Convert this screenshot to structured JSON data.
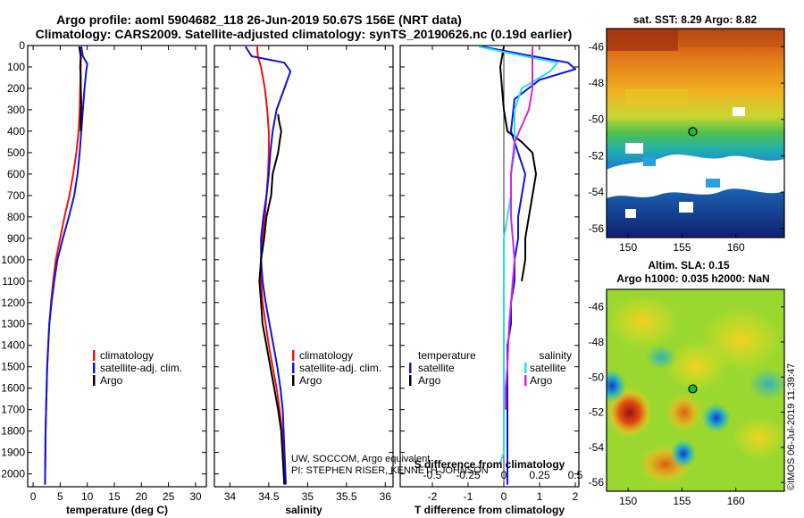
{
  "figure": {
    "title_line1": "Argo profile: aoml 5904682_118 26-Jun-2019 50.67S 156E (NRT data)",
    "title_line2": "Climatology: CARS2009. Satellite-adjusted climatology: synTS_20190626.nc (0.19d earlier)",
    "credit_line1": "UW, SOCCOM, Argo equivalent",
    "credit_line2": "PI: STEPHEN RISER, KENNETH JOHNSON",
    "timestamp": "©IMOS 06-Jul-2019 11:39:47"
  },
  "colors": {
    "climatology": "#ee1111",
    "satellite": "#1111dd",
    "argo": "#000000",
    "satellite_salinity": "#22e0ee",
    "argo_salinity": "#dd22dd"
  },
  "chart_data": [
    {
      "id": "temperature",
      "type": "line",
      "xlabel": "temperature (deg C)",
      "ylabel": "",
      "xlim": [
        -1,
        32
      ],
      "ylim": [
        2060,
        0
      ],
      "xticks": [
        "0",
        "5",
        "10",
        "15",
        "20",
        "25",
        "30"
      ],
      "xtick_values": [
        0,
        5,
        10,
        15,
        20,
        25,
        30
      ],
      "yticks": [
        "0",
        "100",
        "200",
        "300",
        "400",
        "500",
        "600",
        "700",
        "800",
        "900",
        "1000",
        "1100",
        "1200",
        "1300",
        "1400",
        "1500",
        "1600",
        "1700",
        "1800",
        "1900",
        "2000"
      ],
      "ytick_values": [
        0,
        100,
        200,
        300,
        400,
        500,
        600,
        700,
        800,
        900,
        1000,
        1100,
        1200,
        1300,
        1400,
        1500,
        1600,
        1700,
        1800,
        1900,
        2000
      ],
      "legend": [
        "climatology",
        "satellite-adj. clim.",
        "Argo"
      ],
      "series": [
        {
          "name": "climatology",
          "color_key": "climatology",
          "x": [
            8.8,
            8.8,
            8.8,
            8.7,
            8.6,
            8.4,
            8.0,
            7.4,
            6.7,
            5.8,
            5.0,
            4.2,
            3.7,
            3.3,
            3.0,
            2.8,
            2.6,
            2.5,
            2.4,
            2.3,
            2.2
          ],
          "y": [
            5,
            50,
            100,
            200,
            300,
            400,
            500,
            600,
            700,
            800,
            900,
            1000,
            1100,
            1200,
            1300,
            1400,
            1500,
            1600,
            1700,
            1800,
            2050
          ]
        },
        {
          "name": "satellite-adj. clim.",
          "color_key": "satellite",
          "x": [
            8.9,
            9.2,
            10.0,
            9.8,
            9.5,
            9.2,
            8.9,
            8.6,
            8.2,
            7.6,
            6.6,
            5.5,
            4.5,
            3.9,
            3.4,
            3.0,
            2.8,
            2.6,
            2.5,
            2.4,
            2.3,
            2.2
          ],
          "y": [
            5,
            50,
            85,
            120,
            200,
            300,
            400,
            500,
            600,
            700,
            800,
            900,
            1000,
            1100,
            1200,
            1300,
            1400,
            1500,
            1600,
            1700,
            1800,
            2050
          ]
        },
        {
          "name": "Argo",
          "color_key": "argo",
          "x": [
            8.5,
            8.8,
            8.7,
            8.8,
            8.8,
            8.9,
            8.8,
            8.8
          ],
          "y": [
            5,
            50,
            100,
            150,
            200,
            280,
            350,
            400
          ]
        }
      ]
    },
    {
      "id": "salinity",
      "type": "line",
      "xlabel": "salinity",
      "ylabel": "",
      "xlim": [
        33.8,
        36.1
      ],
      "ylim": [
        2060,
        0
      ],
      "xticks": [
        "34",
        "34.5",
        "35",
        "35.5",
        "36"
      ],
      "xtick_values": [
        34,
        34.5,
        35,
        35.5,
        36
      ],
      "legend": [
        "climatology",
        "satellite-adj. clim.",
        "Argo"
      ],
      "series": [
        {
          "name": "climatology",
          "color_key": "climatology",
          "x": [
            34.35,
            34.36,
            34.4,
            34.45,
            34.48,
            34.5,
            34.5,
            34.49,
            34.47,
            34.45,
            34.42,
            34.4,
            34.4,
            34.42,
            34.46,
            34.5,
            34.55,
            34.6,
            34.64,
            34.67,
            34.7
          ],
          "y": [
            5,
            50,
            100,
            200,
            300,
            400,
            500,
            600,
            700,
            800,
            900,
            1000,
            1100,
            1200,
            1300,
            1400,
            1500,
            1600,
            1700,
            1800,
            2050
          ]
        },
        {
          "name": "satellite-adj. clim.",
          "color_key": "satellite",
          "x": [
            34.2,
            34.28,
            34.7,
            34.78,
            34.7,
            34.6,
            34.55,
            34.52,
            34.5,
            34.47,
            34.43,
            34.4,
            34.4,
            34.42,
            34.46,
            34.51,
            34.56,
            34.61,
            34.65,
            34.68,
            34.72
          ],
          "y": [
            5,
            50,
            80,
            120,
            200,
            300,
            400,
            500,
            600,
            700,
            800,
            900,
            1000,
            1100,
            1200,
            1300,
            1400,
            1500,
            1600,
            1700,
            2050
          ]
        },
        {
          "name": "Argo",
          "color_key": "argo",
          "x": [
            34.62,
            34.63,
            34.66,
            34.64,
            34.62,
            34.55,
            34.53,
            34.47,
            34.44,
            34.4,
            34.38,
            34.4,
            34.42,
            34.47,
            34.52,
            34.57,
            34.62,
            34.66,
            34.7
          ],
          "y": [
            320,
            350,
            400,
            450,
            500,
            600,
            700,
            800,
            900,
            1000,
            1100,
            1200,
            1300,
            1400,
            1500,
            1600,
            1700,
            1800,
            2050
          ]
        }
      ]
    },
    {
      "id": "difference",
      "type": "line",
      "xlabel": "T difference from climatology",
      "xlabel_top": "S difference from climatology",
      "xlim": [
        -2.9,
        2.1
      ],
      "ylim": [
        2060,
        0
      ],
      "xticks": [
        "-2",
        "-1",
        "0",
        "1",
        "2"
      ],
      "xtick_values": [
        -2,
        -1,
        0,
        1,
        2
      ],
      "xticks_top": [
        "-0.5",
        "-0.25",
        "0",
        "0.25",
        "0.5"
      ],
      "xtick_top_values": [
        -2,
        -1,
        0,
        1,
        2
      ],
      "legend_temperature_title": "temperature",
      "legend_salinity_title": "salinity",
      "legend_temperature": [
        "satellite",
        "Argo"
      ],
      "legend_salinity": [
        "satellite",
        "Argo"
      ],
      "series": [
        {
          "name": "T satellite",
          "color_key": "satellite",
          "x": [
            -0.6,
            0.5,
            1.8,
            2.0,
            1.0,
            0.3,
            0.2,
            0.4,
            0.6,
            0.5,
            0.4,
            0.4,
            0.3,
            0.3,
            0.2,
            0.2,
            0.1,
            0.1,
            0.1,
            0.1,
            0.1
          ],
          "y": [
            5,
            40,
            80,
            110,
            160,
            250,
            400,
            500,
            600,
            700,
            800,
            900,
            1000,
            1100,
            1200,
            1300,
            1400,
            1500,
            1600,
            1800,
            2050
          ]
        },
        {
          "name": "T Argo",
          "color_key": "argo",
          "x": [
            0.0,
            -0.1,
            0.0,
            0.1,
            0.5,
            0.8,
            0.9,
            0.8,
            0.7,
            0.6,
            0.6,
            0.5
          ],
          "y": [
            5,
            100,
            300,
            400,
            450,
            500,
            600,
            700,
            800,
            900,
            1000,
            1100
          ]
        },
        {
          "name": "S satellite",
          "color_key": "satellite_salinity",
          "x": [
            -0.7,
            0.3,
            1.5,
            1.3,
            0.5,
            0.3,
            0.3,
            0.2,
            0.2,
            0.1,
            0.0,
            0.0,
            0.0,
            0.0,
            0.0,
            0.0,
            0.0,
            -0.1
          ],
          "y": [
            5,
            40,
            80,
            120,
            200,
            300,
            500,
            600,
            700,
            800,
            900,
            1100,
            1300,
            1500,
            1700,
            1800,
            1900,
            1950
          ]
        },
        {
          "name": "S Argo",
          "color_key": "argo_salinity",
          "x": [
            0.8,
            0.8,
            0.8,
            0.7,
            0.3,
            0.2,
            0.2,
            0.2,
            0.25,
            0.3,
            0.25,
            0.2,
            0.15,
            0.1,
            0.05,
            0.05
          ],
          "y": [
            5,
            50,
            200,
            300,
            450,
            600,
            700,
            800,
            900,
            1000,
            1100,
            1200,
            1300,
            1500,
            1600,
            1700
          ]
        }
      ]
    },
    {
      "id": "sst_map",
      "type": "heatmap",
      "title": "sat. SST: 8.29 Argo: 8.82",
      "x_ticks": [
        "150",
        "155",
        "160"
      ],
      "x_tick_values": [
        150,
        155,
        160
      ],
      "y_ticks": [
        "-46",
        "-48",
        "-50",
        "-52",
        "-54",
        "-56"
      ],
      "y_tick_values": [
        -46,
        -48,
        -50,
        -52,
        -54,
        -56
      ],
      "lon_range": [
        148,
        164.5
      ],
      "lat_range": [
        -56.5,
        -45
      ],
      "marker": {
        "lon": 156,
        "lat": -50.67
      }
    },
    {
      "id": "sla_map",
      "type": "heatmap",
      "title_line1": "Altim. SLA: 0.15",
      "title_line2": "Argo h1000: 0.035 h2000: NaN",
      "x_ticks": [
        "150",
        "155",
        "160"
      ],
      "x_tick_values": [
        150,
        155,
        160
      ],
      "y_ticks": [
        "-46",
        "-48",
        "-50",
        "-52",
        "-54",
        "-56"
      ],
      "y_tick_values": [
        -46,
        -48,
        -50,
        -52,
        -54,
        -56
      ],
      "lon_range": [
        148,
        164.5
      ],
      "lat_range": [
        -56.5,
        -45
      ],
      "marker": {
        "lon": 156,
        "lat": -50.67
      }
    }
  ]
}
